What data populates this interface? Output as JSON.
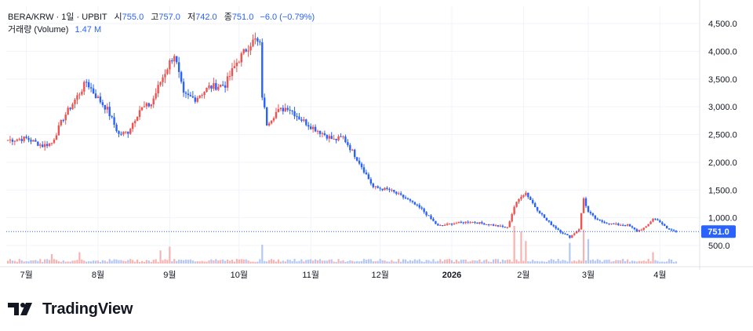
{
  "legend": {
    "symbol": "BERA/KRW · 1일 · UPBIT",
    "open_label": "시",
    "open": "755.0",
    "high_label": "고",
    "high": "757.0",
    "low_label": "저",
    "low": "742.0",
    "close_label": "종",
    "close": "751.0",
    "change": "−6.0 (−0.79%)",
    "volume_label": "거래량 (Volume)",
    "volume": "1.47 M"
  },
  "price_label": "751.0",
  "brand": "TradingView",
  "colors": {
    "up": "#ef5350",
    "down": "#2962ff",
    "up_volume": "#f7b3b2",
    "down_volume": "#b5c7f5",
    "grid": "#f0f3fa",
    "price_line": "#2962ff"
  },
  "chart_data": {
    "type": "candlestick",
    "title": "BERA/KRW · 1일 · UPBIT",
    "y_axis": {
      "position": "right",
      "range": [
        400,
        4600
      ],
      "ticks": [
        "500.0",
        "1,000.0",
        "1,500.0",
        "2,000.0",
        "2,500.0",
        "3,000.0",
        "3,500.0",
        "4,000.0",
        "4,500.0"
      ],
      "tick_values": [
        500,
        1000,
        1500,
        2000,
        2500,
        3000,
        3500,
        4000,
        4500
      ]
    },
    "x_axis": {
      "ticks": [
        "7월",
        "8월",
        "9월",
        "10월",
        "11월",
        "12월",
        "2026",
        "2월",
        "3월",
        "4월"
      ],
      "bold_ticks": [
        "2026"
      ]
    },
    "last_price": 751.0,
    "grid": true,
    "price_keypoints": [
      [
        "2025-06-23",
        2400
      ],
      [
        "2025-07-01",
        2430
      ],
      [
        "2025-07-08",
        2300
      ],
      [
        "2025-07-12",
        2350
      ],
      [
        "2025-07-17",
        2800
      ],
      [
        "2025-07-24",
        3250
      ],
      [
        "2025-07-27",
        3450
      ],
      [
        "2025-07-31",
        3200
      ],
      [
        "2025-08-05",
        2950
      ],
      [
        "2025-08-10",
        2500
      ],
      [
        "2025-08-14",
        2550
      ],
      [
        "2025-08-19",
        2950
      ],
      [
        "2025-08-24",
        3050
      ],
      [
        "2025-08-28",
        3450
      ],
      [
        "2025-09-01",
        3800
      ],
      [
        "2025-09-03",
        3950
      ],
      [
        "2025-09-07",
        3200
      ],
      [
        "2025-09-12",
        3150
      ],
      [
        "2025-09-18",
        3350
      ],
      [
        "2025-09-25",
        3400
      ],
      [
        "2025-09-30",
        3800
      ],
      [
        "2025-10-06",
        4150
      ],
      [
        "2025-10-08",
        4200
      ],
      [
        "2025-10-10",
        4100
      ],
      [
        "2025-10-11",
        3200
      ],
      [
        "2025-10-13",
        2700
      ],
      [
        "2025-10-17",
        2900
      ],
      [
        "2025-10-22",
        3000
      ],
      [
        "2025-10-27",
        2800
      ],
      [
        "2025-11-01",
        2650
      ],
      [
        "2025-11-05",
        2550
      ],
      [
        "2025-11-11",
        2400
      ],
      [
        "2025-11-15",
        2450
      ],
      [
        "2025-11-22",
        2000
      ],
      [
        "2025-11-28",
        1550
      ],
      [
        "2025-12-05",
        1500
      ],
      [
        "2025-12-12",
        1350
      ],
      [
        "2025-12-19",
        1150
      ],
      [
        "2025-12-26",
        850
      ],
      [
        "2026-01-02",
        900
      ],
      [
        "2026-01-09",
        930
      ],
      [
        "2026-01-17",
        880
      ],
      [
        "2026-01-25",
        820
      ],
      [
        "2026-01-28",
        1200
      ],
      [
        "2026-01-31",
        1400
      ],
      [
        "2026-02-02",
        1450
      ],
      [
        "2026-02-06",
        1200
      ],
      [
        "2026-02-11",
        950
      ],
      [
        "2026-02-17",
        750
      ],
      [
        "2026-02-21",
        650
      ],
      [
        "2026-02-25",
        800
      ],
      [
        "2026-02-27",
        1350
      ],
      [
        "2026-03-01",
        1100
      ],
      [
        "2026-03-05",
        950
      ],
      [
        "2026-03-12",
        880
      ],
      [
        "2026-03-18",
        870
      ],
      [
        "2026-03-22",
        760
      ],
      [
        "2026-03-26",
        830
      ],
      [
        "2026-03-29",
        990
      ],
      [
        "2026-04-01",
        930
      ],
      [
        "2026-04-04",
        800
      ],
      [
        "2026-04-08",
        751
      ]
    ],
    "volume_spikes": [
      [
        "2025-07-12",
        0.25
      ],
      [
        "2025-07-24",
        0.3
      ],
      [
        "2025-08-28",
        0.35
      ],
      [
        "2025-09-01",
        0.45
      ],
      [
        "2025-10-11",
        0.5
      ],
      [
        "2026-01-28",
        1.0
      ],
      [
        "2026-01-31",
        0.85
      ],
      [
        "2026-02-02",
        0.6
      ],
      [
        "2026-02-21",
        0.55
      ],
      [
        "2026-02-27",
        0.9
      ],
      [
        "2026-03-01",
        0.65
      ],
      [
        "2026-03-29",
        0.3
      ]
    ]
  }
}
